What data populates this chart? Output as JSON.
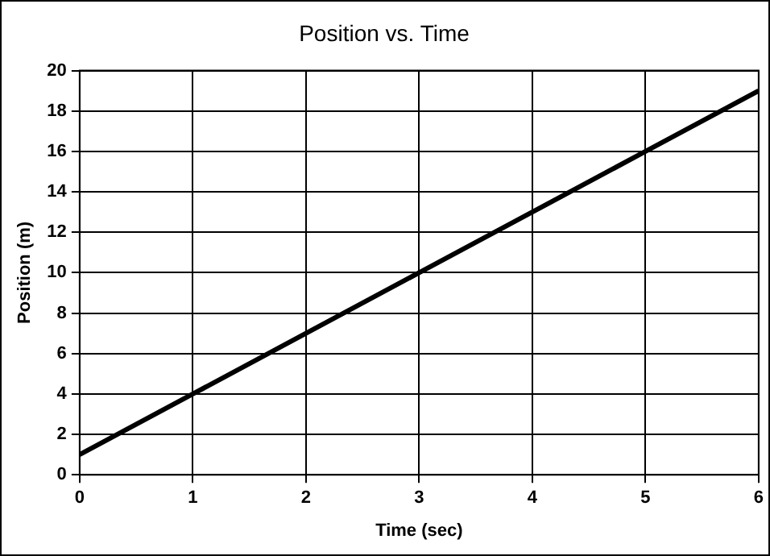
{
  "chart_data": {
    "type": "line",
    "title": "Position vs. Time",
    "xlabel": "Time (sec)",
    "ylabel": "Position (m)",
    "x": [
      0,
      1,
      2,
      3,
      4,
      5,
      6
    ],
    "series": [
      {
        "color": "#000000",
        "values": [
          1,
          4,
          7,
          10,
          13,
          16,
          19
        ]
      }
    ],
    "xlim": [
      0,
      6
    ],
    "xticks": [
      0,
      1,
      2,
      3,
      4,
      5,
      6
    ],
    "ylim": [
      0,
      20
    ],
    "yticks": [
      0,
      2,
      4,
      6,
      8,
      10,
      12,
      14,
      16,
      18,
      20
    ],
    "grid": true,
    "legend": false,
    "marker": "none",
    "line_style": "solid"
  }
}
